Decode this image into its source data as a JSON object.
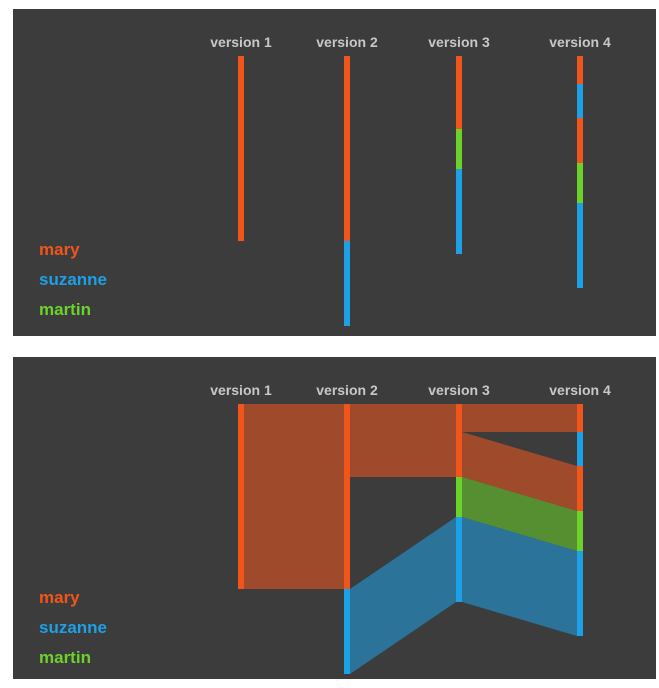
{
  "colors": {
    "mary": "#f0561c",
    "suzanne": "#1ea0e6",
    "martin": "#6cd22a",
    "panel_bg": "#3c3c3c"
  },
  "versions": [
    "version 1",
    "version 2",
    "version 3",
    "version 4"
  ],
  "legend": [
    {
      "key": "mary",
      "label": "mary"
    },
    {
      "key": "suzanne",
      "label": "suzanne"
    },
    {
      "key": "martin",
      "label": "martin"
    }
  ],
  "stacks": [
    [
      {
        "author": "mary",
        "amount": 185
      }
    ],
    [
      {
        "author": "mary",
        "amount": 185
      },
      {
        "author": "suzanne",
        "amount": 85
      }
    ],
    [
      {
        "author": "mary",
        "amount": 73
      },
      {
        "author": "martin",
        "amount": 40
      },
      {
        "author": "suzanne",
        "amount": 85
      }
    ],
    [
      {
        "author": "mary",
        "amount": 28
      },
      {
        "author": "suzanne",
        "amount": 34
      },
      {
        "author": "mary",
        "amount": 45
      },
      {
        "author": "martin",
        "amount": 40
      },
      {
        "author": "suzanne",
        "amount": 85
      }
    ]
  ],
  "flows": [
    {
      "author": "mary",
      "from": 0,
      "from_start": 0,
      "to_start": 0,
      "amount": 185
    },
    {
      "author": "mary",
      "from": 1,
      "from_start": 0,
      "to_start": 0,
      "amount": 73
    },
    {
      "author": "suzanne",
      "from": 1,
      "from_start": 185,
      "to_start": 113,
      "amount": 85
    },
    {
      "author": "mary",
      "from": 2,
      "from_start": 0,
      "to_start": 0,
      "amount": 28
    },
    {
      "author": "mary",
      "from": 2,
      "from_start": 28,
      "to_start": 62,
      "amount": 45
    },
    {
      "author": "martin",
      "from": 2,
      "from_start": 73,
      "to_start": 107,
      "amount": 40
    },
    {
      "author": "suzanne",
      "from": 2,
      "from_start": 113,
      "to_start": 147,
      "amount": 85
    }
  ]
}
